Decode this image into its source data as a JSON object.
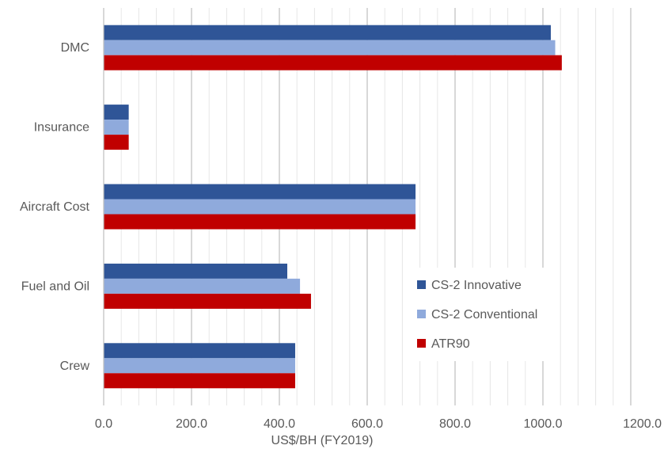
{
  "chart_data": {
    "type": "bar",
    "orientation": "horizontal",
    "categories": [
      "DMC",
      "Insurance",
      "Aircraft Cost",
      "Fuel and Oil",
      "Crew"
    ],
    "series": [
      {
        "name": "CS-2 Innovative",
        "color": "#2f5597",
        "values": [
          1018,
          57,
          710,
          418,
          436
        ]
      },
      {
        "name": "CS-2 Conventional",
        "color": "#8faadc",
        "values": [
          1028,
          57,
          710,
          447,
          436
        ]
      },
      {
        "name": "ATR90",
        "color": "#c00000",
        "values": [
          1043,
          57,
          710,
          472,
          436
        ]
      }
    ],
    "xlabel": "US$/BH (FY2019)",
    "xlim": [
      0,
      1200
    ],
    "x_ticks": [
      "0.0",
      "200.0",
      "400.0",
      "600.0",
      "800.0",
      "1000.0",
      "1200.0"
    ],
    "x_tick_values": [
      0,
      200,
      400,
      600,
      800,
      1000,
      1200
    ],
    "minor_gridline_step": 40,
    "grid": true,
    "legend_position": "lower-right"
  }
}
